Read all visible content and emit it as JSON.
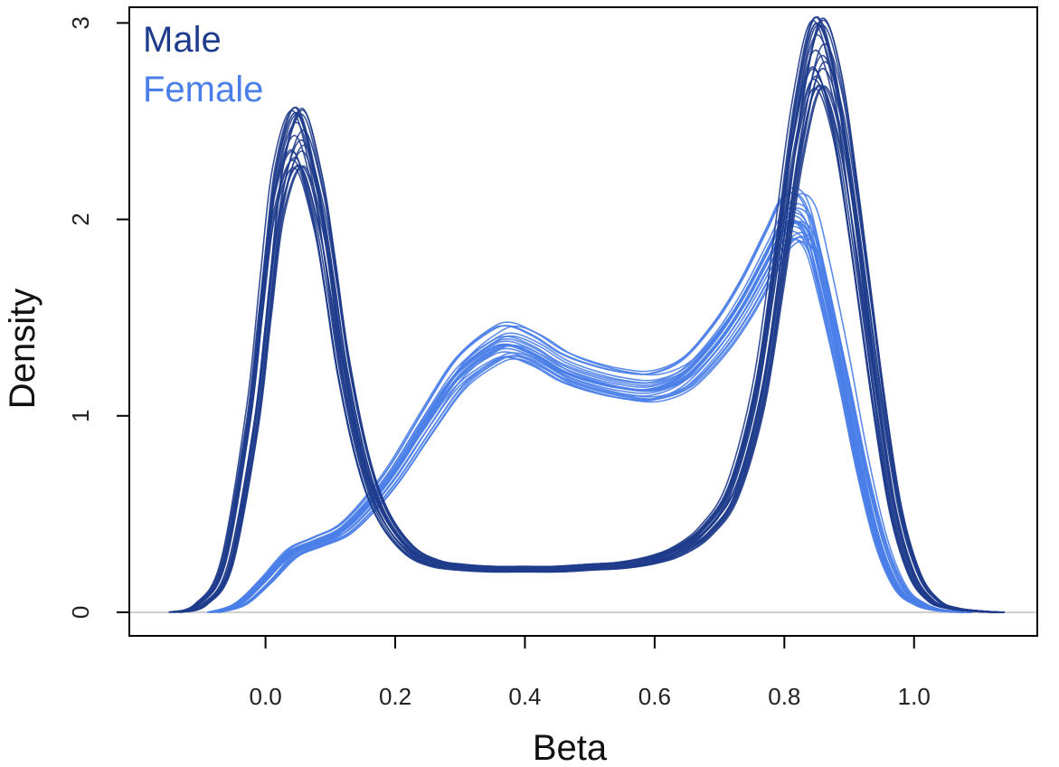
{
  "chart_data": {
    "type": "line",
    "title": "",
    "xlabel": "Beta",
    "ylabel": "Density",
    "xlim": [
      -0.21,
      1.19
    ],
    "ylim": [
      -0.12,
      3.08
    ],
    "x_ticks": [
      0.0,
      0.2,
      0.4,
      0.6,
      0.8,
      1.0
    ],
    "x_tick_labels": [
      "0.0",
      "0.2",
      "0.4",
      "0.6",
      "0.8",
      "1.0"
    ],
    "y_ticks": [
      0,
      1,
      2,
      3
    ],
    "y_tick_labels": [
      "0",
      "1",
      "2",
      "3"
    ],
    "grid": false,
    "legend_position": "top-left",
    "colors": {
      "Male": "#1f3c8c",
      "Female": "#4a7ee8",
      "zero_line": "#cfcfcf"
    },
    "series": [
      {
        "name": "Male",
        "x": [
          -0.14,
          -0.1,
          -0.06,
          -0.02,
          0.0,
          0.02,
          0.05,
          0.08,
          0.1,
          0.12,
          0.15,
          0.18,
          0.22,
          0.26,
          0.3,
          0.35,
          0.4,
          0.45,
          0.5,
          0.55,
          0.6,
          0.64,
          0.68,
          0.72,
          0.76,
          0.79,
          0.82,
          0.85,
          0.88,
          0.91,
          0.94,
          0.97,
          1.0,
          1.03,
          1.06,
          1.1,
          1.13
        ],
        "y": [
          0.0,
          0.04,
          0.25,
          1.0,
          1.6,
          2.15,
          2.42,
          2.1,
          1.7,
          1.25,
          0.78,
          0.5,
          0.32,
          0.25,
          0.23,
          0.22,
          0.22,
          0.22,
          0.23,
          0.24,
          0.27,
          0.32,
          0.42,
          0.62,
          1.1,
          1.75,
          2.45,
          2.85,
          2.6,
          1.95,
          1.2,
          0.55,
          0.2,
          0.06,
          0.02,
          0.005,
          0.0
        ]
      },
      {
        "name": "Female",
        "x": [
          -0.08,
          -0.04,
          0.0,
          0.04,
          0.08,
          0.12,
          0.16,
          0.2,
          0.25,
          0.3,
          0.35,
          0.38,
          0.42,
          0.46,
          0.5,
          0.55,
          0.6,
          0.65,
          0.7,
          0.74,
          0.78,
          0.8,
          0.82,
          0.84,
          0.86,
          0.89,
          0.92,
          0.95,
          0.98,
          1.01,
          1.04,
          1.08
        ],
        "y": [
          0.0,
          0.04,
          0.16,
          0.3,
          0.36,
          0.42,
          0.55,
          0.72,
          0.98,
          1.22,
          1.35,
          1.38,
          1.33,
          1.25,
          1.2,
          1.16,
          1.15,
          1.22,
          1.4,
          1.6,
          1.85,
          1.98,
          2.02,
          1.95,
          1.7,
          1.25,
          0.75,
          0.35,
          0.12,
          0.04,
          0.01,
          0.0
        ]
      }
    ]
  }
}
